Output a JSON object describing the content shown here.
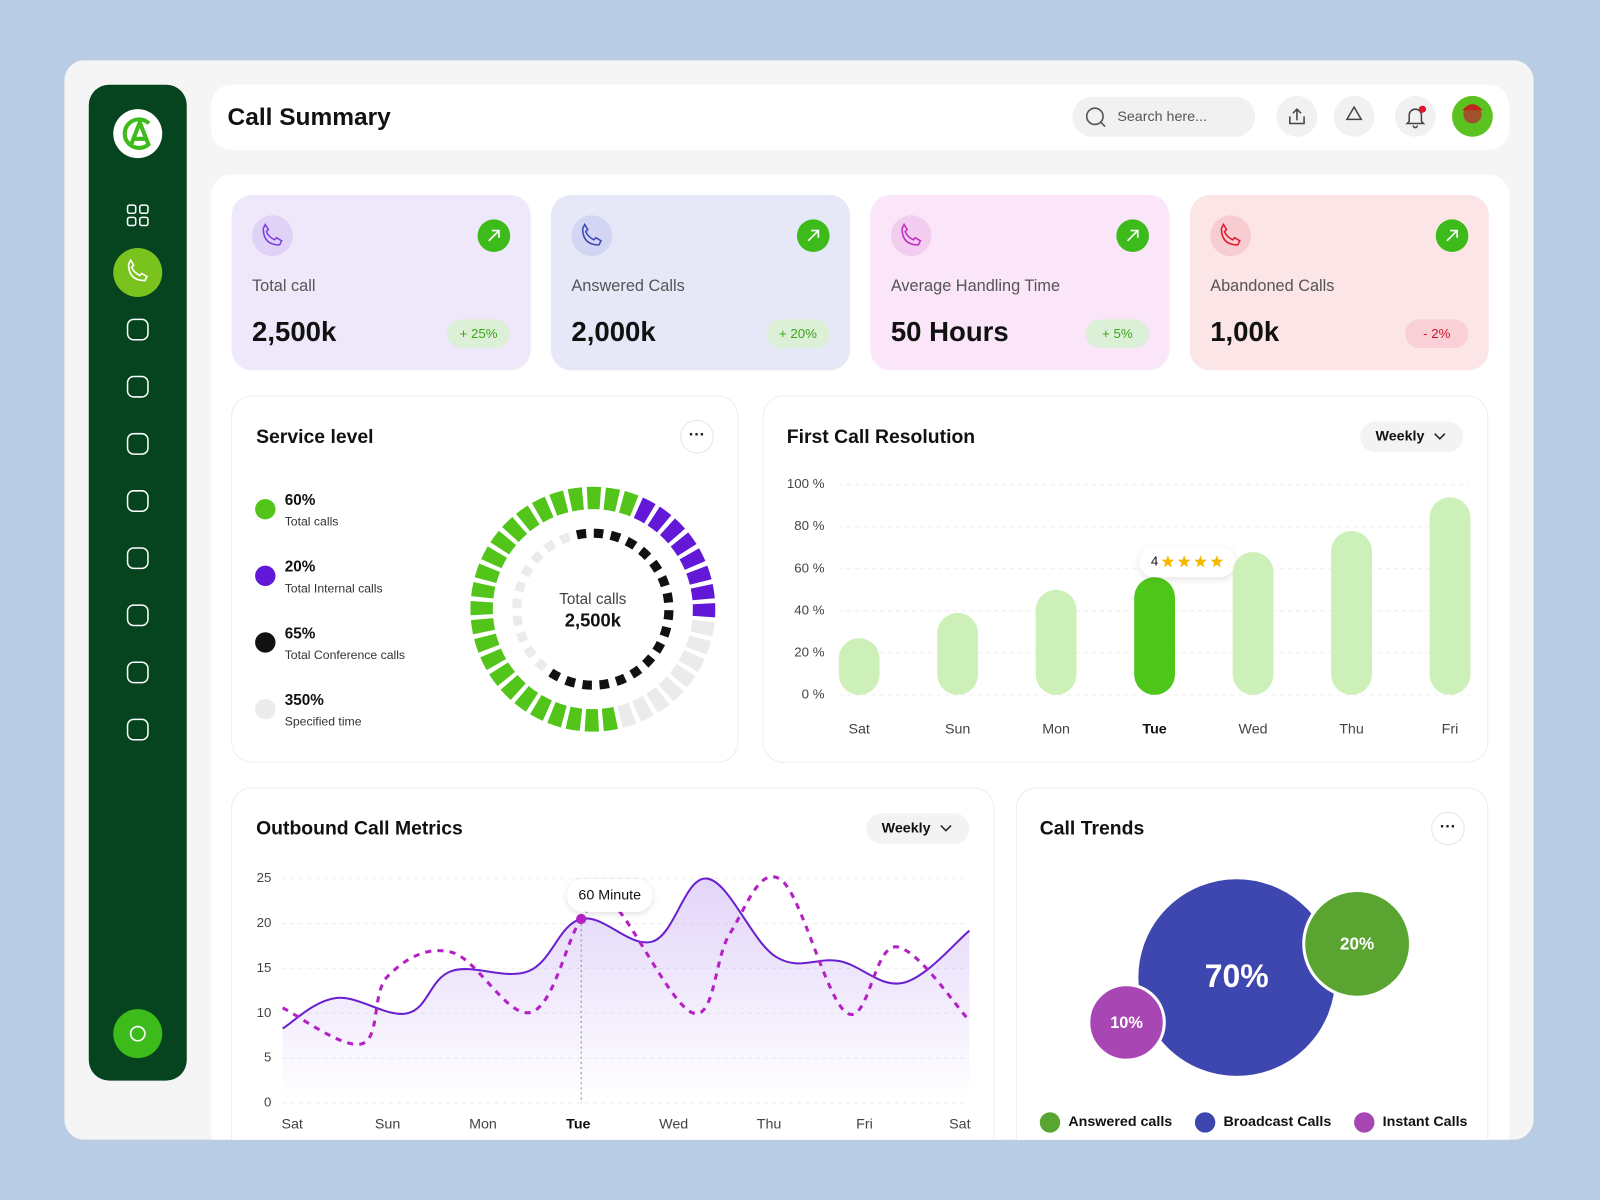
{
  "header": {
    "title": "Call Summary",
    "search_placeholder": "Search here..."
  },
  "stats": [
    {
      "label": "Total call",
      "value": "2,500k",
      "change": "+ 25%"
    },
    {
      "label": "Answered Calls",
      "value": "2,000k",
      "change": "+ 20%"
    },
    {
      "label": "Average Handling Time",
      "value": "50 Hours",
      "change": "+ 5%"
    },
    {
      "label": "Abandoned Calls",
      "value": "1,00k",
      "change": "- 2%"
    }
  ],
  "service_level": {
    "title": "Service level",
    "center_label": "Total calls",
    "center_value": "2,500k",
    "items": [
      {
        "value": 60,
        "value_label": "60%",
        "label": "Total calls",
        "color": "#52c41a"
      },
      {
        "value": 20,
        "value_label": "20%",
        "label": "Total Internal calls",
        "color": "#6318d8"
      },
      {
        "value": 65,
        "value_label": "65%",
        "label": "Total Conference  calls",
        "color": "#111111"
      },
      {
        "value": 350,
        "value_label": "350%",
        "label": "Specified time",
        "color": "#ebebeb"
      }
    ]
  },
  "chart_data": [
    {
      "type": "bar",
      "title": "First Call Resolution",
      "filter": "Weekly",
      "categories": [
        "Sat",
        "Sun",
        "Mon",
        "Tue",
        "Wed",
        "Thu",
        "Fri"
      ],
      "values": [
        27,
        39,
        50,
        56,
        68,
        78,
        94
      ],
      "color": "#cdf0b8",
      "highlight_color": "#4fc61a",
      "highlight": "Tue",
      "rating": 4,
      "ylim": [
        0,
        100
      ],
      "yticks": [
        {
          "value": 0,
          "label": "0 %"
        },
        {
          "value": 20,
          "label": "20 %"
        },
        {
          "value": 40,
          "label": "40 %"
        },
        {
          "value": 60,
          "label": "60 %"
        },
        {
          "value": 80,
          "label": "80 %"
        },
        {
          "value": 100,
          "label": "100 %"
        }
      ],
      "grid": true
    },
    {
      "type": "line",
      "title": "Outbound Call Metrics",
      "filter": "Weekly",
      "highlight": "Tue",
      "tooltip": "60 Minute",
      "xlim": [
        -0.1,
        7.1
      ],
      "xticks": [
        {
          "value": 0,
          "label": "Sat"
        },
        {
          "value": 1,
          "label": "Sun"
        },
        {
          "value": 2,
          "label": "Mon"
        },
        {
          "value": 3,
          "label": "Tue"
        },
        {
          "value": 4,
          "label": "Wed"
        },
        {
          "value": 5,
          "label": "Thu"
        },
        {
          "value": 6,
          "label": "Fri"
        },
        {
          "value": 7,
          "label": "Sat"
        }
      ],
      "ylim": [
        0,
        25
      ],
      "yticks": [
        0,
        5,
        10,
        15,
        20,
        25
      ],
      "grid": true,
      "series": [
        {
          "color": "#6a1fd0",
          "fill": true,
          "x": [
            -0.1,
            0.46,
            1.21,
            1.67,
            2.48,
            3.03,
            3.78,
            4.35,
            5.07,
            5.74,
            6.41,
            7.1
          ],
          "values": [
            8.3,
            11.7,
            10,
            14.7,
            14.7,
            20.5,
            18,
            25,
            16.3,
            15.8,
            13.4,
            19.2
          ]
        },
        {
          "color": "#b520c4",
          "dashed": true,
          "x": [
            -0.1,
            0.73,
            1.0,
            1.67,
            2.5,
            3.03,
            3.35,
            4.21,
            4.59,
            5.12,
            5.82,
            6.33,
            7.1
          ],
          "values": [
            10.6,
            6.6,
            14.1,
            16.8,
            10.1,
            20.5,
            22.3,
            10,
            18.9,
            24.9,
            10,
            17.4,
            9.2
          ]
        }
      ]
    },
    {
      "type": "bubble",
      "title": "Call Trends",
      "categories": [
        "Answered calls",
        "Broadcast Calls",
        "Instant Calls"
      ],
      "values": [
        20,
        70,
        10
      ],
      "value_labels": [
        "20%",
        "70%",
        "10%"
      ],
      "colors": [
        "#5aa532",
        "#3e46b0",
        "#a846b4"
      ]
    }
  ]
}
